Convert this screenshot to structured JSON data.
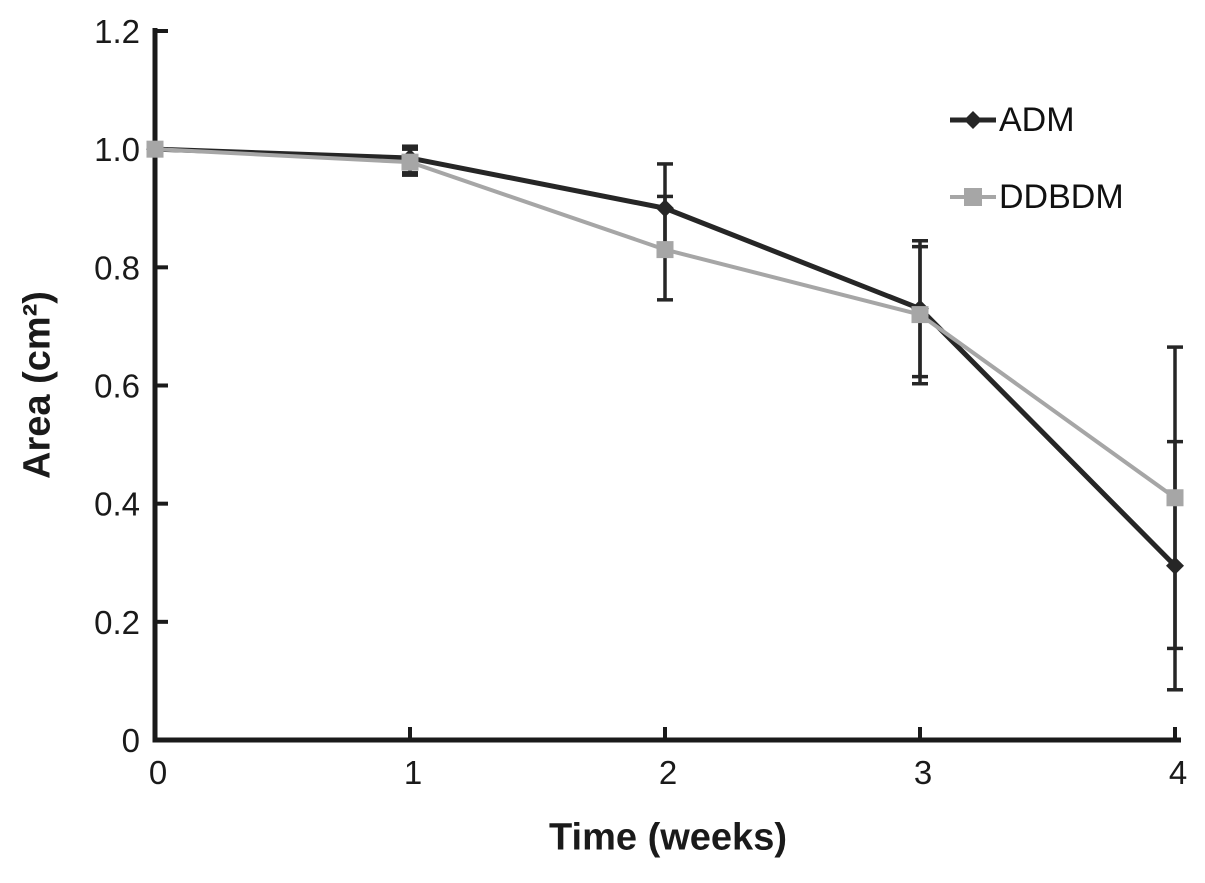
{
  "figure": {
    "background": "#ffffff",
    "text_color": "#1a1a1a"
  },
  "chart_data": {
    "type": "line",
    "title": "",
    "xlabel": "Time (weeks)",
    "ylabel": "Area (cm²)",
    "x": [
      0,
      1,
      2,
      3,
      4
    ],
    "xlim": [
      0,
      4
    ],
    "ylim": [
      0,
      1.2
    ],
    "xticks": [
      0,
      1,
      2,
      3,
      4
    ],
    "xtick_labels": [
      "0",
      "1",
      "2",
      "3",
      "4"
    ],
    "yticks": [
      0,
      0.2,
      0.4,
      0.6,
      0.8,
      1.0,
      1.2
    ],
    "ytick_labels": [
      "0",
      "0.2",
      "0.4",
      "0.6",
      "0.8",
      "1.0",
      "1.2"
    ],
    "grid": false,
    "legend_position": "top-right-inside",
    "error_bar_color": "#262626",
    "axis_color": "#1a1a1a",
    "series": [
      {
        "name": "ADM",
        "marker": "diamond",
        "color": "#262626",
        "line_width": 5,
        "values": [
          1.0,
          0.985,
          0.9,
          0.73,
          0.295
        ],
        "err_plus": [
          0,
          0.02,
          0.075,
          0.115,
          0.21
        ],
        "err_minus": [
          0,
          0.025,
          0.075,
          0.115,
          0.21
        ]
      },
      {
        "name": "DDBDM",
        "marker": "square",
        "color": "#a6a6a6",
        "line_width": 4,
        "values": [
          1.0,
          0.978,
          0.83,
          0.72,
          0.41
        ],
        "err_plus": [
          0,
          0.022,
          0.09,
          0.115,
          0.255
        ],
        "err_minus": [
          0,
          0.022,
          0.085,
          0.117,
          0.255
        ]
      }
    ]
  }
}
